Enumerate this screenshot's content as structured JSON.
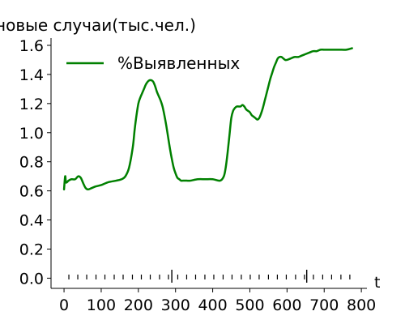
{
  "chart_data": {
    "type": "line",
    "title": "новые случаи(тыс.чел.)",
    "xlabel": "t",
    "ylabel": "",
    "xlim": [
      -35,
      815
    ],
    "ylim": [
      -0.07,
      1.65
    ],
    "x_ticks": [
      0,
      100,
      200,
      300,
      400,
      500,
      600,
      700,
      800
    ],
    "y_ticks": [
      0.0,
      0.2,
      0.4,
      0.6,
      0.8,
      1.0,
      1.2,
      1.4,
      1.6
    ],
    "x_tick_labels": [
      "0",
      "100",
      "200",
      "300",
      "400",
      "500",
      "600",
      "700",
      "800"
    ],
    "y_tick_labels": [
      "0.0",
      "0.2",
      "0.4",
      "0.6",
      "0.8",
      "1.0",
      "1.2",
      "1.4",
      "1.6"
    ],
    "grid": false,
    "legend_position": "top-left",
    "rug_short": [
      13,
      37,
      61,
      86,
      110,
      135,
      159,
      184,
      208,
      232,
      257,
      281,
      306,
      330,
      354,
      379,
      403,
      428,
      452,
      477,
      501,
      525,
      550,
      574,
      598,
      623,
      647,
      671,
      696,
      720,
      745,
      769
    ],
    "rug_long": [
      290,
      653
    ],
    "series": [
      {
        "name": "%Выявленных",
        "color": "#008000",
        "x": [
          0,
          3,
          5,
          8,
          12,
          20,
          30,
          38,
          45,
          52,
          58,
          65,
          75,
          85,
          100,
          120,
          140,
          155,
          165,
          175,
          185,
          190,
          195,
          200,
          205,
          210,
          215,
          220,
          225,
          230,
          235,
          240,
          245,
          250,
          255,
          260,
          265,
          270,
          275,
          280,
          285,
          290,
          295,
          300,
          305,
          310,
          315,
          320,
          330,
          340,
          360,
          380,
          400,
          420,
          430,
          435,
          440,
          445,
          450,
          455,
          460,
          465,
          470,
          475,
          480,
          485,
          490,
          495,
          500,
          505,
          510,
          515,
          520,
          525,
          530,
          535,
          540,
          545,
          550,
          555,
          560,
          565,
          570,
          575,
          580,
          585,
          590,
          595,
          600,
          610,
          620,
          630,
          640,
          650,
          660,
          670,
          680,
          690,
          700,
          720,
          740,
          760,
          775
        ],
        "y": [
          0.61,
          0.7,
          0.66,
          0.66,
          0.67,
          0.68,
          0.68,
          0.7,
          0.69,
          0.65,
          0.62,
          0.61,
          0.62,
          0.63,
          0.64,
          0.66,
          0.67,
          0.68,
          0.7,
          0.76,
          0.9,
          1.02,
          1.12,
          1.2,
          1.24,
          1.27,
          1.3,
          1.33,
          1.35,
          1.36,
          1.36,
          1.35,
          1.32,
          1.28,
          1.25,
          1.22,
          1.18,
          1.12,
          1.05,
          0.97,
          0.89,
          0.82,
          0.76,
          0.72,
          0.69,
          0.68,
          0.67,
          0.67,
          0.67,
          0.67,
          0.68,
          0.68,
          0.68,
          0.67,
          0.7,
          0.76,
          0.86,
          0.98,
          1.1,
          1.15,
          1.17,
          1.18,
          1.18,
          1.18,
          1.19,
          1.18,
          1.16,
          1.15,
          1.14,
          1.12,
          1.11,
          1.1,
          1.09,
          1.1,
          1.13,
          1.17,
          1.22,
          1.27,
          1.32,
          1.37,
          1.41,
          1.45,
          1.48,
          1.51,
          1.52,
          1.52,
          1.51,
          1.5,
          1.5,
          1.51,
          1.52,
          1.52,
          1.53,
          1.54,
          1.55,
          1.56,
          1.56,
          1.57,
          1.57,
          1.57,
          1.57,
          1.57,
          1.58
        ]
      }
    ]
  }
}
